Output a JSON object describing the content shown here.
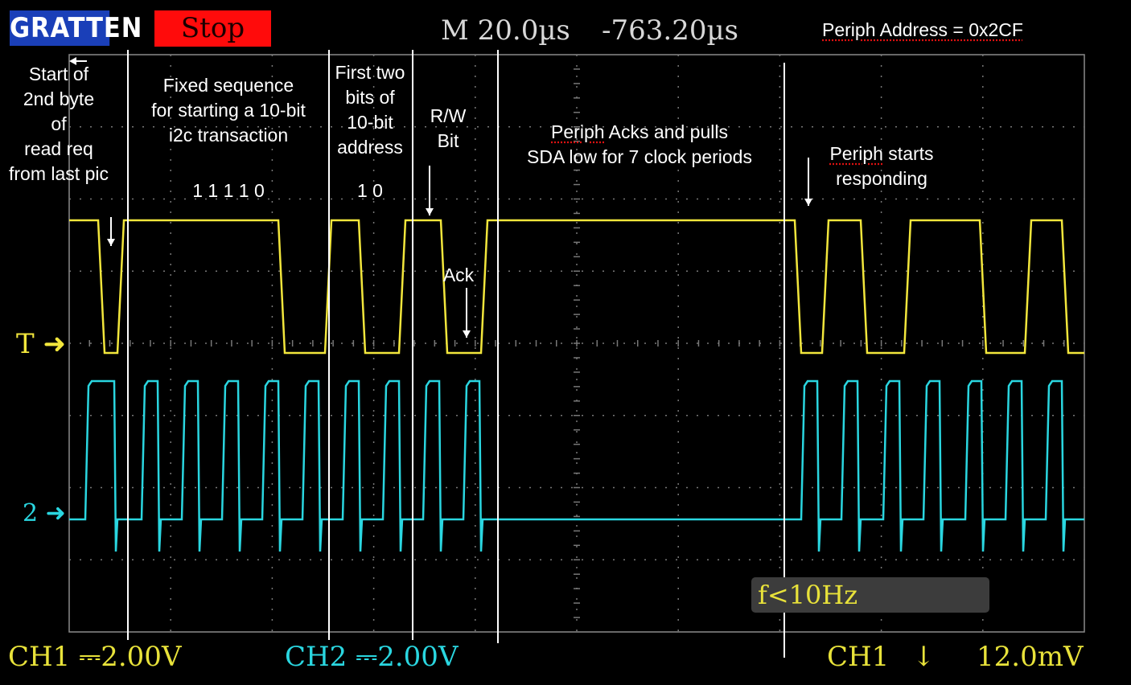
{
  "header": {
    "logo_text": "GRATTEN",
    "run_state": "Stop",
    "timebase": "M  20.0µs",
    "trigger_position": "-763.20µs",
    "address_label": "Periph Address = 0x2CF"
  },
  "annotations": {
    "start_2nd_byte": [
      "Start of",
      "2nd byte",
      "of",
      "read req",
      "from last pic"
    ],
    "fixed_sequence": [
      "Fixed sequence",
      "for starting a 10-bit",
      "i2c transaction"
    ],
    "fixed_bits": "1  1  1  1  0",
    "first_two_bits": [
      "First two",
      "bits of",
      "10-bit",
      "address"
    ],
    "first_bits": "1  0",
    "rw_bit": [
      "R/W",
      "Bit"
    ],
    "ack": "Ack",
    "periph_acks": [
      "Periph Acks and pulls",
      "SDA low for 7 clock periods"
    ],
    "periph_starts": [
      "Periph starts",
      "responding"
    ]
  },
  "markers": {
    "trigger": "T",
    "ch2": "2"
  },
  "frequency_readout": "f<10Hz",
  "status_bar": {
    "ch1_scale": "CH1  ⎓2.00V",
    "ch2_scale": "CH2  ⎓2.00V",
    "trigger_source": "CH1",
    "trigger_edge": "↓",
    "trigger_level": "12.0mV"
  },
  "colors": {
    "ch1": "#f2e63c",
    "ch2": "#2ad6e0",
    "grid": "#8a8a8a"
  }
}
